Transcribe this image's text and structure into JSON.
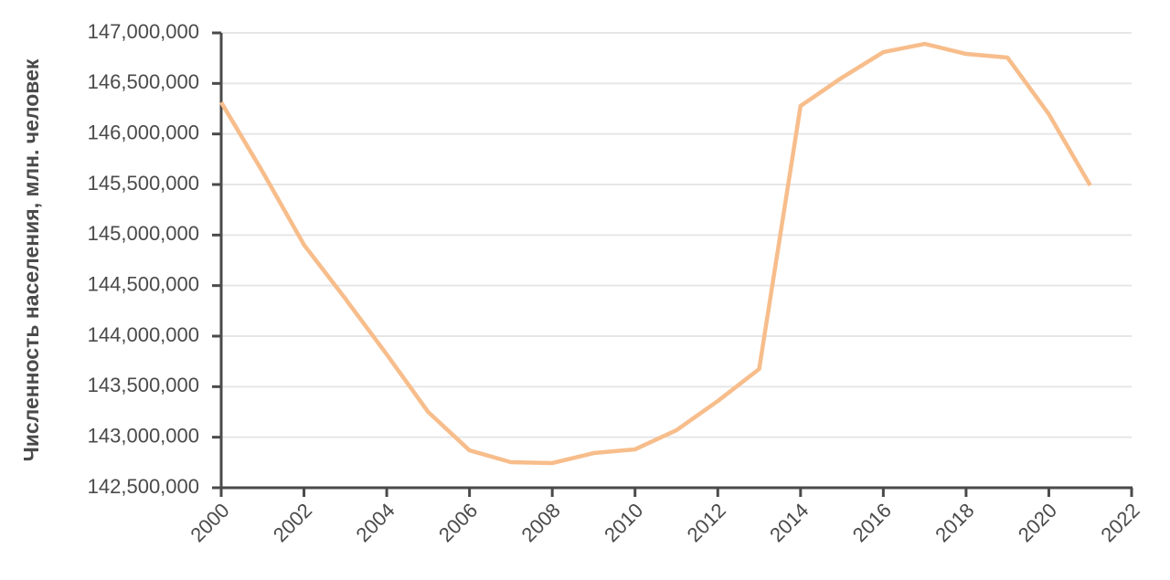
{
  "chart_data": {
    "type": "line",
    "y_label": "Численность населения, млн. человек",
    "x": [
      2000,
      2001,
      2002,
      2003,
      2004,
      2005,
      2006,
      2007,
      2008,
      2009,
      2010,
      2011,
      2012,
      2013,
      2014,
      2015,
      2016,
      2017,
      2018,
      2019,
      2020,
      2021
    ],
    "series": [
      {
        "color": "#f7bd8b",
        "values": [
          146313000,
          145626000,
          144904000,
          144370000,
          143819000,
          143250000,
          142870000,
          142753000,
          142744000,
          142843000,
          142880000,
          143069000,
          143358000,
          143675000,
          146277000,
          146557000,
          146810000,
          146891000,
          146792000,
          146756000,
          146196000,
          145491000
        ]
      }
    ],
    "xlim": [
      2000,
      2022
    ],
    "xticks": [
      2000,
      2002,
      2004,
      2006,
      2008,
      2010,
      2012,
      2014,
      2016,
      2018,
      2020,
      2022
    ],
    "ylim": [
      142500000,
      147000000
    ],
    "yticks": [
      {
        "value": 142500000,
        "label": "142,500,000"
      },
      {
        "value": 143000000,
        "label": "143,000,000"
      },
      {
        "value": 143500000,
        "label": "143,500,000"
      },
      {
        "value": 144000000,
        "label": "144,000,000"
      },
      {
        "value": 144500000,
        "label": "144,500,000"
      },
      {
        "value": 145000000,
        "label": "145,000,000"
      },
      {
        "value": 145500000,
        "label": "145,500,000"
      },
      {
        "value": 146000000,
        "label": "146,000,000"
      },
      {
        "value": 146500000,
        "label": "146,500,000"
      },
      {
        "value": 147000000,
        "label": "147,000,000"
      }
    ],
    "grid": true
  }
}
